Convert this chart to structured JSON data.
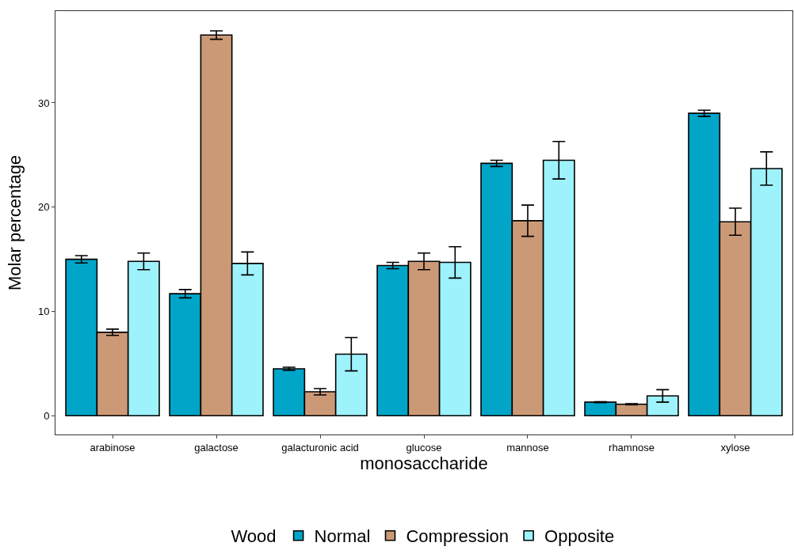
{
  "chart_data": {
    "type": "bar",
    "xlabel": "monosaccharide",
    "ylabel": "Molar percentage",
    "legend_title": "Wood",
    "categories": [
      "arabinose",
      "galactose",
      "galacturonic acid",
      "glucose",
      "mannose",
      "rhamnose",
      "xylose"
    ],
    "series": [
      {
        "name": "Normal",
        "color": "#00a5c8",
        "values": [
          15.0,
          11.7,
          4.5,
          14.4,
          24.2,
          1.3,
          29.0
        ],
        "errors": [
          0.35,
          0.4,
          0.15,
          0.3,
          0.3,
          0.05,
          0.3
        ]
      },
      {
        "name": "Compression",
        "color": "#cc9977",
        "values": [
          8.0,
          36.5,
          2.3,
          14.8,
          18.7,
          1.1,
          18.6
        ],
        "errors": [
          0.3,
          0.4,
          0.3,
          0.8,
          1.5,
          0.05,
          1.3
        ]
      },
      {
        "name": "Opposite",
        "color": "#9ef2fb",
        "values": [
          14.8,
          14.6,
          5.9,
          14.7,
          24.5,
          1.9,
          23.7
        ],
        "errors": [
          0.8,
          1.1,
          1.6,
          1.5,
          1.8,
          0.6,
          1.6
        ]
      }
    ],
    "ylim": [
      -1.8,
      38.8
    ],
    "yticks": [
      0,
      10,
      20,
      30
    ],
    "legend": "bottom"
  }
}
